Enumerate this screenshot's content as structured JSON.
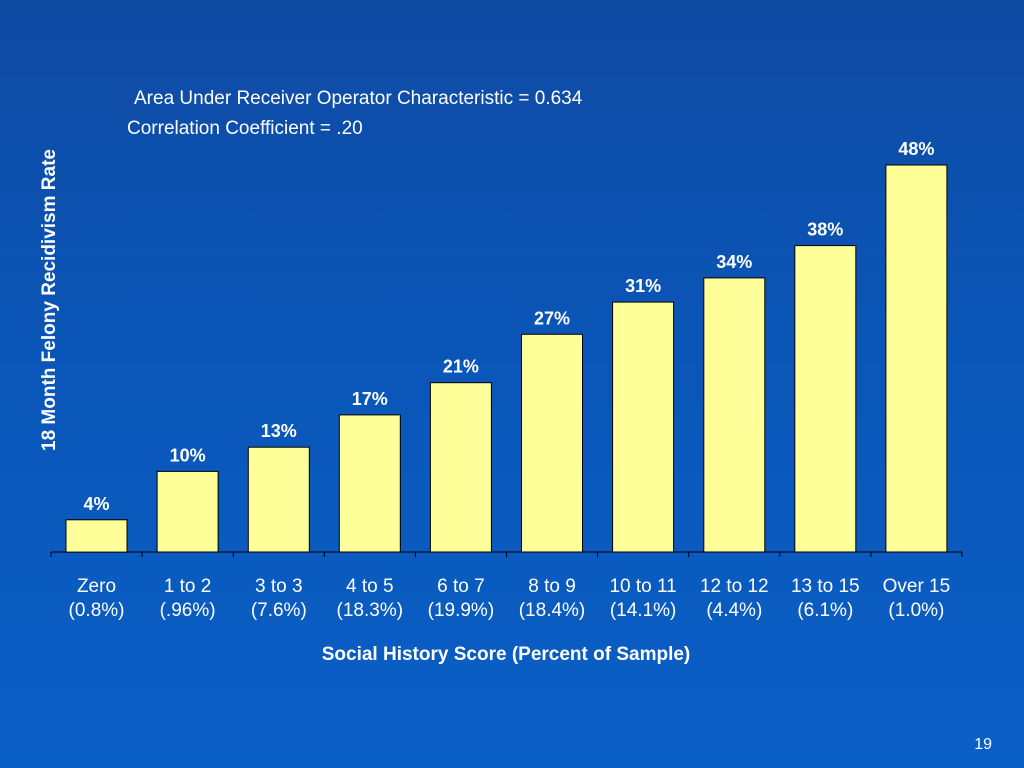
{
  "slide": {
    "page_number": "19"
  },
  "chart_data": {
    "type": "bar",
    "annotations": [
      "Area Under Receiver Operator Characteristic = 0.634",
      "Correlation Coefficient = .20"
    ],
    "xlabel": "Social History Score (Percent of Sample)",
    "ylabel": "18 Month Felony Recidivism Rate",
    "categories": [
      [
        "Zero",
        "(0.8%)"
      ],
      [
        "1 to 2",
        "(.96%)"
      ],
      [
        "3 to 3",
        "(7.6%)"
      ],
      [
        "4 to 5",
        "(18.3%)"
      ],
      [
        "6 to 7",
        "(19.9%)"
      ],
      [
        "8 to 9",
        "(18.4%)"
      ],
      [
        "10 to 11",
        "(14.1%)"
      ],
      [
        "12 to 12",
        "(4.4%)"
      ],
      [
        "13 to 15",
        "(6.1%)"
      ],
      [
        "Over 15",
        "(1.0%)"
      ]
    ],
    "values": [
      4,
      10,
      13,
      17,
      21,
      27,
      31,
      34,
      38,
      48
    ],
    "value_labels": [
      "4%",
      "10%",
      "13%",
      "17%",
      "21%",
      "27%",
      "31%",
      "34%",
      "38%",
      "48%"
    ],
    "ylim": [
      0,
      48
    ],
    "bar_color": "#ffff99",
    "background_color": "#0a56b8"
  }
}
